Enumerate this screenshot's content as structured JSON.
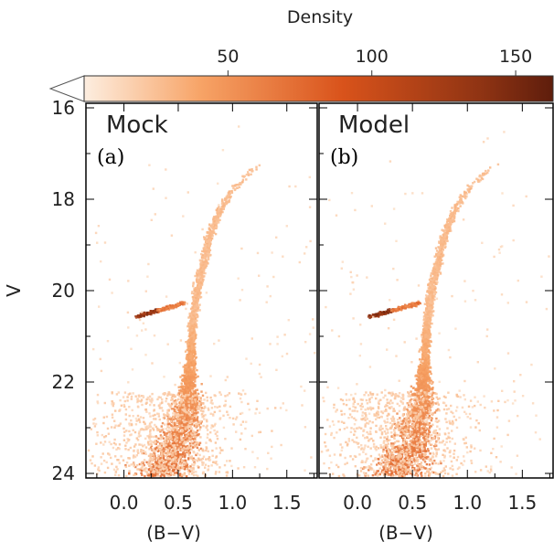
{
  "colorbar": {
    "label": "Density",
    "ticks": [
      50,
      100,
      150
    ],
    "range": [
      0,
      163
    ],
    "colors": [
      "#fdeee0",
      "#f7a366",
      "#d9531b",
      "#8e3313",
      "#5e1d0c"
    ]
  },
  "chart_data": [
    {
      "type": "heatmap",
      "panel": "(a)",
      "title": "Mock",
      "xlabel": "(B−V)",
      "ylabel": "V",
      "xlim": [
        -0.35,
        1.78
      ],
      "ylim": [
        24.1,
        15.9
      ],
      "x_ticks": [
        "0.0",
        "0.5",
        "1.0",
        "1.5"
      ],
      "y_ticks": [
        "16",
        "18",
        "20",
        "22",
        "24"
      ],
      "features": {
        "main_sequence_ridge": [
          [
            0.35,
            24.0
          ],
          [
            0.5,
            23.2
          ],
          [
            0.58,
            22.4
          ],
          [
            0.6,
            21.6
          ],
          [
            0.62,
            20.8
          ],
          [
            0.66,
            20.0
          ],
          [
            0.72,
            19.4
          ],
          [
            0.78,
            18.8
          ],
          [
            0.86,
            18.3
          ],
          [
            0.98,
            17.8
          ],
          [
            1.1,
            17.5
          ],
          [
            1.25,
            17.2
          ]
        ],
        "horizontal_branch": [
          [
            0.1,
            20.55
          ],
          [
            0.2,
            20.5
          ],
          [
            0.3,
            20.45
          ],
          [
            0.45,
            20.35
          ],
          [
            0.55,
            20.25
          ]
        ],
        "peak_density_region": {
          "x": [
            0.1,
            0.3
          ],
          "V": [
            20.45,
            20.65
          ]
        }
      }
    },
    {
      "type": "heatmap",
      "panel": "(b)",
      "title": "Model",
      "xlabel": "(B−V)",
      "ylabel": "",
      "xlim": [
        -0.35,
        1.78
      ],
      "ylim": [
        24.1,
        15.9
      ],
      "x_ticks": [
        "0.0",
        "0.5",
        "1.0",
        "1.5"
      ],
      "y_ticks": [],
      "features": {
        "main_sequence_ridge": [
          [
            0.35,
            24.0
          ],
          [
            0.5,
            23.2
          ],
          [
            0.58,
            22.4
          ],
          [
            0.6,
            21.6
          ],
          [
            0.62,
            20.8
          ],
          [
            0.66,
            20.0
          ],
          [
            0.72,
            19.4
          ],
          [
            0.78,
            18.8
          ],
          [
            0.86,
            18.3
          ],
          [
            0.98,
            17.8
          ],
          [
            1.1,
            17.5
          ],
          [
            1.25,
            17.2
          ]
        ],
        "horizontal_branch": [
          [
            0.1,
            20.55
          ],
          [
            0.2,
            20.5
          ],
          [
            0.3,
            20.45
          ],
          [
            0.45,
            20.35
          ],
          [
            0.55,
            20.25
          ]
        ],
        "peak_density_region": {
          "x": [
            0.1,
            0.3
          ],
          "V": [
            20.45,
            20.65
          ]
        }
      }
    }
  ]
}
